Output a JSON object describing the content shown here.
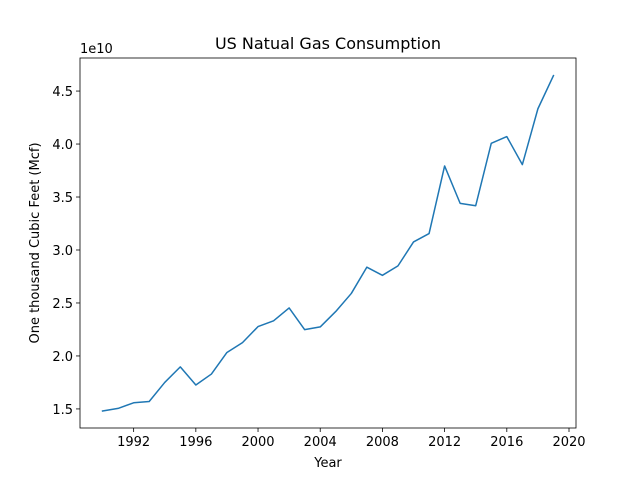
{
  "chart_data": {
    "type": "line",
    "title": "US Natual Gas Consumption",
    "xlabel": "Year",
    "ylabel": "One thousand Cubic Feet (Mcf)",
    "y_offset_label": "1e10",
    "y_multiplier": 10000000000,
    "xlim": [
      1988.55,
      2020.45
    ],
    "ylim": [
      13200000000,
      48120000000
    ],
    "x_ticks": [
      1992,
      1996,
      2000,
      2004,
      2008,
      2012,
      2016,
      2020
    ],
    "x_tick_labels": [
      "1992",
      "1996",
      "2000",
      "2004",
      "2008",
      "2012",
      "2016",
      "2020"
    ],
    "y_ticks": [
      15000000000,
      20000000000,
      25000000000,
      30000000000,
      35000000000,
      40000000000,
      45000000000
    ],
    "y_tick_labels": [
      "1.5",
      "2.0",
      "2.5",
      "3.0",
      "3.5",
      "4.0",
      "4.5"
    ],
    "grid": false,
    "line_color": "#1f77b4",
    "series": [
      {
        "x": [
          1990,
          1991,
          1992,
          1993,
          1994,
          1995,
          1996,
          1997,
          1998,
          1999,
          2000,
          2001,
          2002,
          2003,
          2004,
          2005,
          2006,
          2007,
          2008,
          2009,
          2010,
          2011,
          2012,
          2013,
          2014,
          2015,
          2016,
          2017,
          2018,
          2019
        ],
        "values": [
          14800000000,
          15050000000,
          15580000000,
          15700000000,
          17500000000,
          18970000000,
          17260000000,
          18290000000,
          20330000000,
          21260000000,
          22770000000,
          23320000000,
          24530000000,
          22480000000,
          22740000000,
          24200000000,
          25900000000,
          28380000000,
          27610000000,
          28500000000,
          30760000000,
          31550000000,
          37930000000,
          34400000000,
          34180000000,
          40070000000,
          40700000000,
          38060000000,
          43330000000,
          46460000000
        ]
      }
    ]
  }
}
